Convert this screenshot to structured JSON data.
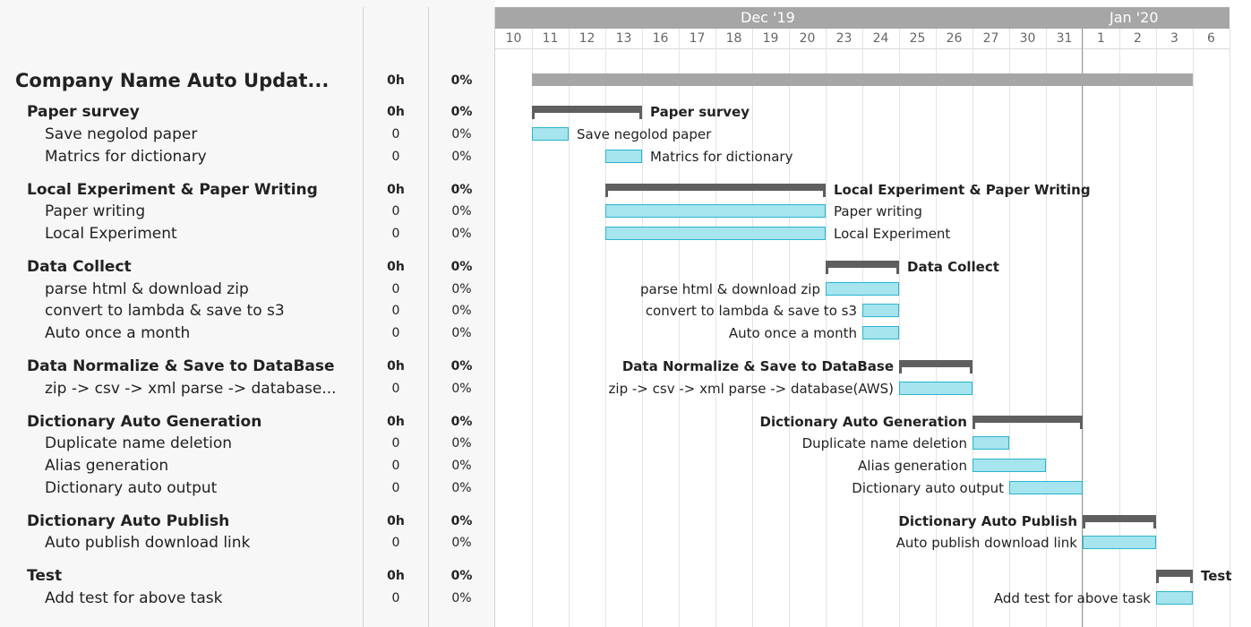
{
  "timeline": {
    "months": [
      {
        "label": "Dec '19"
      },
      {
        "label": "Jan '20"
      }
    ],
    "days": [
      "10",
      "11",
      "12",
      "13",
      "16",
      "17",
      "18",
      "19",
      "20",
      "23",
      "24",
      "25",
      "26",
      "27",
      "30",
      "31",
      "1",
      "2",
      "3",
      "6"
    ]
  },
  "rows": [
    {
      "type": "project",
      "name": "Company Name Auto Updat...",
      "hours": "0h",
      "pct": "0%",
      "bar_label": ""
    },
    {
      "type": "group",
      "name": "Paper survey",
      "hours": "0h",
      "pct": "0%",
      "bar_label": "Paper survey"
    },
    {
      "type": "task",
      "name": "Save negolod paper",
      "hours": "0",
      "pct": "0%",
      "bar_label": "Save negolod paper"
    },
    {
      "type": "task",
      "name": "Matrics for dictionary",
      "hours": "0",
      "pct": "0%",
      "bar_label": "Matrics for dictionary"
    },
    {
      "type": "group",
      "name": "Local Experiment & Paper Writing",
      "hours": "0h",
      "pct": "0%",
      "bar_label": "Local Experiment & Paper Writing"
    },
    {
      "type": "task",
      "name": "Paper writing",
      "hours": "0",
      "pct": "0%",
      "bar_label": "Paper writing"
    },
    {
      "type": "task",
      "name": "Local Experiment",
      "hours": "0",
      "pct": "0%",
      "bar_label": "Local Experiment"
    },
    {
      "type": "group",
      "name": "Data Collect",
      "hours": "0h",
      "pct": "0%",
      "bar_label": "Data Collect"
    },
    {
      "type": "task",
      "name": "parse html & download zip",
      "hours": "0",
      "pct": "0%",
      "bar_label": "parse html & download zip"
    },
    {
      "type": "task",
      "name": "convert to lambda & save to s3",
      "hours": "0",
      "pct": "0%",
      "bar_label": "convert to lambda & save to s3"
    },
    {
      "type": "task",
      "name": "Auto once a month",
      "hours": "0",
      "pct": "0%",
      "bar_label": "Auto once a month"
    },
    {
      "type": "group",
      "name": "Data Normalize & Save to DataBase",
      "hours": "0h",
      "pct": "0%",
      "bar_label": "Data Normalize & Save to DataBase"
    },
    {
      "type": "task",
      "name": "zip -> csv -> xml parse -> database...",
      "hours": "0",
      "pct": "0%",
      "bar_label": "zip -> csv -> xml parse -> database(AWS)"
    },
    {
      "type": "group",
      "name": "Dictionary Auto Generation",
      "hours": "0h",
      "pct": "0%",
      "bar_label": "Dictionary Auto Generation"
    },
    {
      "type": "task",
      "name": "Duplicate name deletion",
      "hours": "0",
      "pct": "0%",
      "bar_label": "Duplicate name deletion"
    },
    {
      "type": "task",
      "name": "Alias generation",
      "hours": "0",
      "pct": "0%",
      "bar_label": "Alias generation"
    },
    {
      "type": "task",
      "name": "Dictionary auto output",
      "hours": "0",
      "pct": "0%",
      "bar_label": "Dictionary auto output"
    },
    {
      "type": "group",
      "name": "Dictionary Auto Publish",
      "hours": "0h",
      "pct": "0%",
      "bar_label": "Dictionary Auto Publish"
    },
    {
      "type": "task",
      "name": "Auto publish download link",
      "hours": "0",
      "pct": "0%",
      "bar_label": "Auto publish download link"
    },
    {
      "type": "group",
      "name": "Test",
      "hours": "0h",
      "pct": "0%",
      "bar_label": "Test"
    },
    {
      "type": "task",
      "name": "Add test for above task",
      "hours": "0",
      "pct": "0%",
      "bar_label": "Add test for above task"
    }
  ],
  "colors": {
    "project_bar": "#a6a6a6",
    "group_bar": "#5f5f5f",
    "task_fill": "#a6e4ee",
    "task_border": "#2ab4cf"
  }
}
